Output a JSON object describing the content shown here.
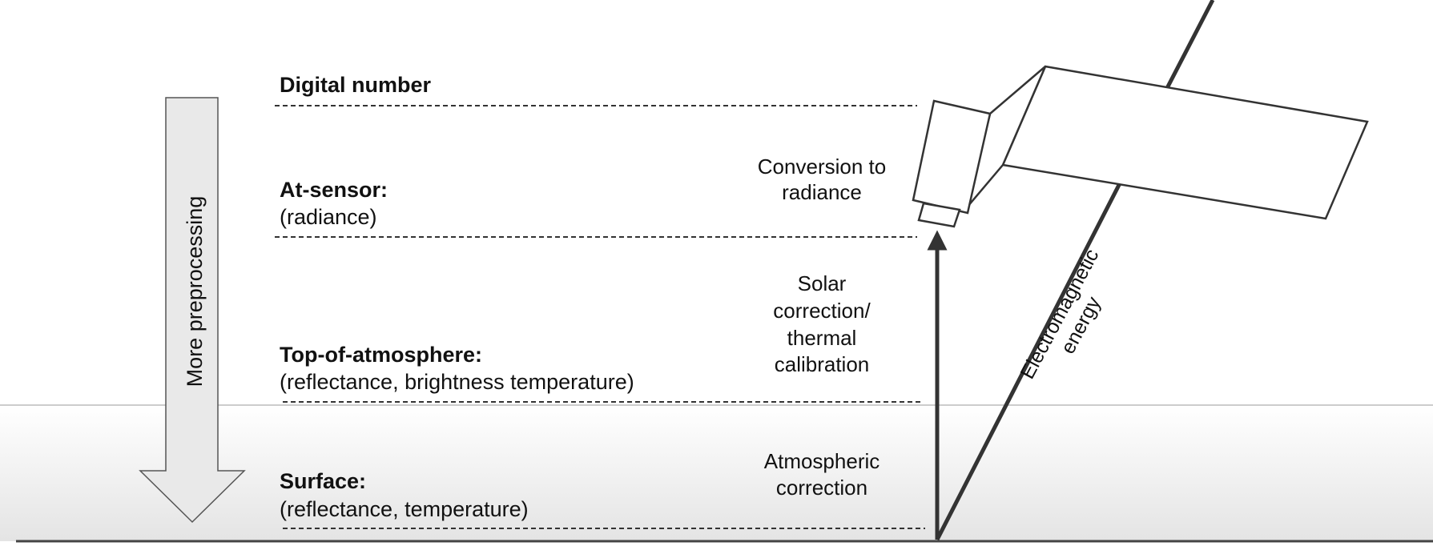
{
  "diagram": {
    "levels": [
      {
        "title": "Digital number",
        "subtitle": ""
      },
      {
        "title": "At-sensor:",
        "subtitle": "(radiance)"
      },
      {
        "title": "Top-of-atmosphere:",
        "subtitle": "(reflectance, brightness temperature)"
      },
      {
        "title": "Surface:",
        "subtitle": "(reflectance, temperature)"
      }
    ],
    "steps": {
      "conversion": [
        "Conversion to",
        "radiance"
      ],
      "solar": [
        "Solar",
        "correction/",
        "thermal",
        "calibration"
      ],
      "atmospheric": [
        "Atmospheric",
        "correction"
      ]
    },
    "preprocessing_arrow": {
      "label": "More preprocessing"
    },
    "energy_label": [
      "Electromagnetic",
      "energy"
    ],
    "colors": {
      "line": "#333333",
      "arrow_fill": "#e8e8e8",
      "ground_gradient_top": "#ffffff",
      "ground_gradient_bottom": "#e6e6e6"
    }
  }
}
